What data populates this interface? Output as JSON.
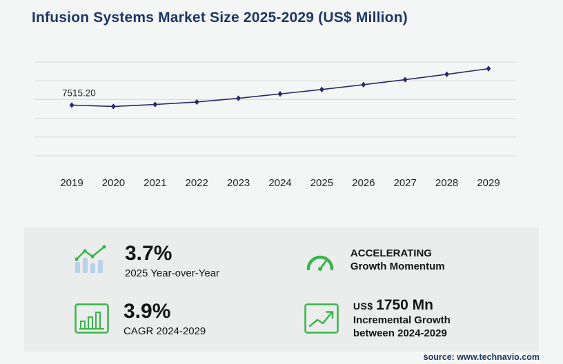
{
  "title": "Infusion Systems Market Size 2025-2029 (US$ Million)",
  "source": "source: www.technavio.com",
  "chart_data": {
    "type": "line",
    "title": "Infusion Systems Market Size 2025-2029 (US$ Million)",
    "x": [
      "2019",
      "2020",
      "2021",
      "2022",
      "2023",
      "2024",
      "2025",
      "2026",
      "2027",
      "2028",
      "2029"
    ],
    "series": [
      {
        "name": "Market Size (US$ Million)",
        "values": [
          7515.2,
          7420,
          7560,
          7730,
          7990,
          8290,
          8597,
          8930,
          9280,
          9650,
          10040
        ]
      }
    ],
    "point_label": "7515.20",
    "ylim": [
      4000,
      10500
    ],
    "grid": true,
    "gridlines": 6,
    "legend": "none",
    "line_color": "#262a68"
  },
  "stats": {
    "yoy": {
      "value": "3.7%",
      "label": "2025 Year-over-Year"
    },
    "momentum": {
      "line1": "ACCELERATING",
      "line2": "Growth Momentum"
    },
    "cagr": {
      "value": "3.9%",
      "label": "CAGR 2024-2029"
    },
    "incremental": {
      "currency": "US$",
      "value": "1750 Mn",
      "label_line1": "Incremental Growth",
      "label_line2": "between 2024-2029"
    }
  },
  "colors": {
    "accent_green": "#39b54a",
    "navy_title": "#1c3766",
    "line_navy": "#262a68"
  }
}
